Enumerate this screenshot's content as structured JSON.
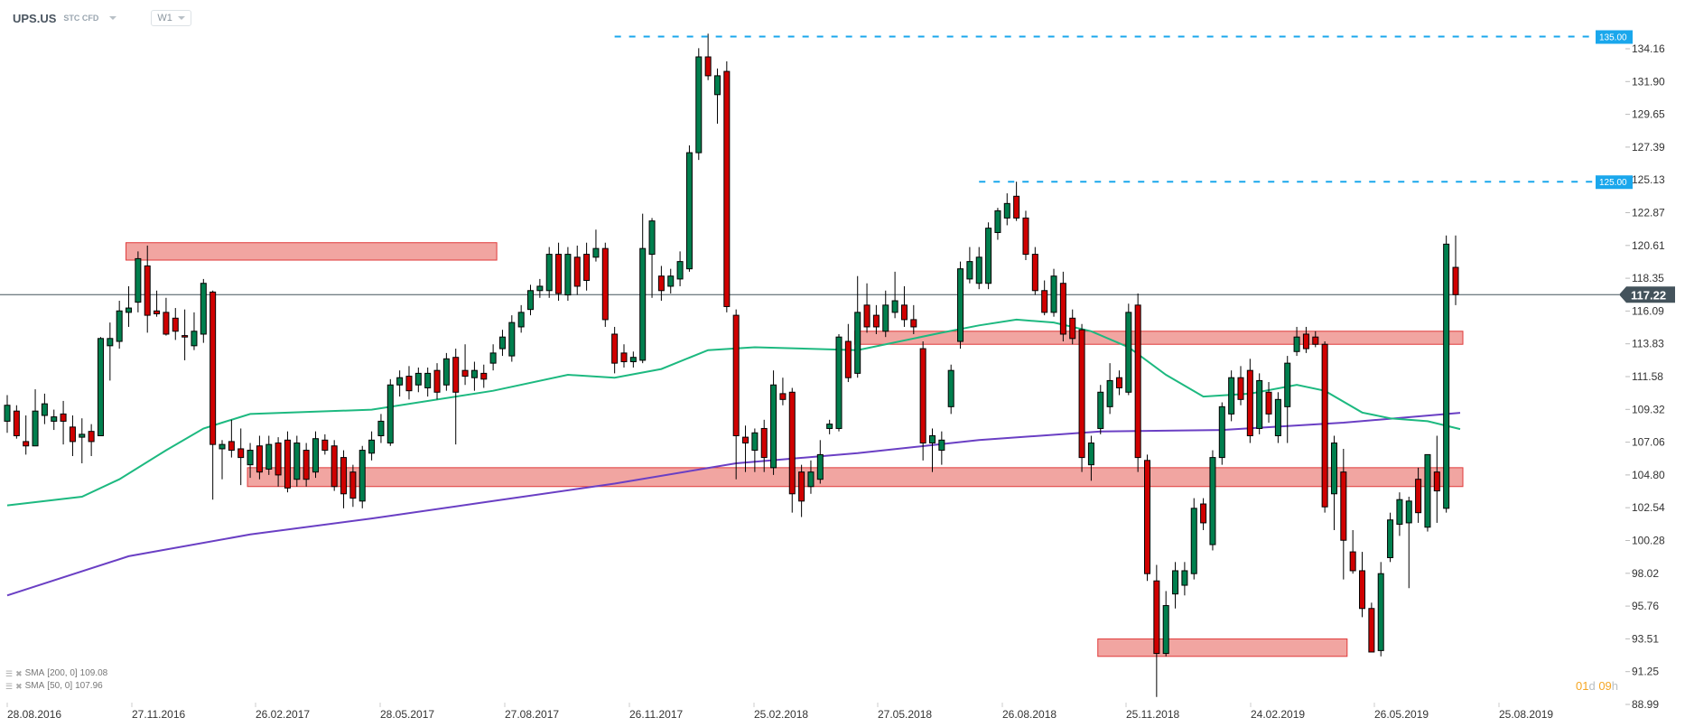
{
  "header": {
    "symbol": "UPS.US",
    "instrument_type": "STC CFD",
    "timeframe": "W1"
  },
  "indicators": [
    {
      "label": "SMA",
      "params": "[200,  0]",
      "value": "109.08",
      "color": "#6a3fc4"
    },
    {
      "label": "SMA",
      "params": "[50,  0]",
      "value": "107.96",
      "color": "#1db980"
    }
  ],
  "countdown": {
    "days": "01",
    "days_unit": "d",
    "hours": "09",
    "hours_unit": "h"
  },
  "colors": {
    "up": "#007f4e",
    "down": "#d00000",
    "zone_fill": "#f0a09c",
    "zone_border": "#e03a3a",
    "level_line": "#1aa7ec",
    "price_line": "#44535c"
  },
  "chart_data": {
    "type": "candlestick",
    "interval": "weekly",
    "first_candle_date": "28.08.2016",
    "ylim": [
      88.99,
      134.16
    ],
    "y_ticks": [
      "134.16",
      "131.90",
      "129.65",
      "127.39",
      "125.13",
      "122.87",
      "120.61",
      "118.35",
      "116.09",
      "113.83",
      "111.58",
      "109.32",
      "107.06",
      "104.80",
      "102.54",
      "100.28",
      "98.02",
      "95.76",
      "93.51",
      "91.25",
      "88.99"
    ],
    "x_ticks": [
      "28.08.2016",
      "27.11.2016",
      "26.02.2017",
      "28.05.2017",
      "27.08.2017",
      "26.11.2017",
      "25.02.2018",
      "27.05.2018",
      "26.08.2018",
      "25.11.2018",
      "24.02.2019",
      "26.05.2019",
      "25.08.2019"
    ],
    "current_price": "117.22",
    "levels": [
      {
        "label": "135.00",
        "value": 135.0,
        "from": "26.11.2017"
      },
      {
        "label": "125.00",
        "value": 125.0,
        "from": "26.08.2018"
      }
    ],
    "zones": [
      {
        "low": 119.6,
        "high": 120.8,
        "from": "27.11.2016",
        "to": "27.08.2017"
      },
      {
        "low": 104.0,
        "high": 105.3,
        "from": "26.02.2017",
        "to": "latest"
      },
      {
        "low": 113.8,
        "high": 114.7,
        "from": "27.05.2018",
        "to": "latest"
      },
      {
        "low": 92.3,
        "high": 93.5,
        "from": "25.11.2018",
        "to": "26.05.2019"
      }
    ],
    "ohlc": [
      [
        108.5,
        110.3,
        107.7,
        109.6
      ],
      [
        109.2,
        109.6,
        107.3,
        107.5
      ],
      [
        107.1,
        108.9,
        106.2,
        106.8
      ],
      [
        106.8,
        110.7,
        106.8,
        109.2
      ],
      [
        108.9,
        110.4,
        108.3,
        109.7
      ],
      [
        108.5,
        109.3,
        107.9,
        108.8
      ],
      [
        109.0,
        109.9,
        106.9,
        108.5
      ],
      [
        108.1,
        108.9,
        106.1,
        107.1
      ],
      [
        107.4,
        108.7,
        105.6,
        107.6
      ],
      [
        107.8,
        108.3,
        106.1,
        107.1
      ],
      [
        107.5,
        114.3,
        107.5,
        114.2
      ],
      [
        113.7,
        115.3,
        111.3,
        114.2
      ],
      [
        114.0,
        116.8,
        113.5,
        116.1
      ],
      [
        116.0,
        117.8,
        115.0,
        116.3
      ],
      [
        116.7,
        120.2,
        116.0,
        119.7
      ],
      [
        119.2,
        120.6,
        114.6,
        115.8
      ],
      [
        116.1,
        117.5,
        115.7,
        115.9
      ],
      [
        116.0,
        117.0,
        114.4,
        114.5
      ],
      [
        115.6,
        116.3,
        114.1,
        114.7
      ],
      [
        114.4,
        116.2,
        112.7,
        114.3
      ],
      [
        113.7,
        116.0,
        113.4,
        114.7
      ],
      [
        114.5,
        118.3,
        113.9,
        118.0
      ],
      [
        117.4,
        117.5,
        103.1,
        106.9
      ],
      [
        106.6,
        107.2,
        104.5,
        106.9
      ],
      [
        107.1,
        108.6,
        106.0,
        106.5
      ],
      [
        106.6,
        108.0,
        104.1,
        106.0
      ],
      [
        105.5,
        107.0,
        104.6,
        106.5
      ],
      [
        106.8,
        107.5,
        104.5,
        105.0
      ],
      [
        105.2,
        107.5,
        104.8,
        106.9
      ],
      [
        107.0,
        107.4,
        104.0,
        104.8
      ],
      [
        107.2,
        107.8,
        103.6,
        103.9
      ],
      [
        104.5,
        107.5,
        104.0,
        107.0
      ],
      [
        106.5,
        107.0,
        104.0,
        104.5
      ],
      [
        105.0,
        107.8,
        104.6,
        107.3
      ],
      [
        107.2,
        107.6,
        106.2,
        106.5
      ],
      [
        106.8,
        107.2,
        103.7,
        104.0
      ],
      [
        106.0,
        106.5,
        102.5,
        103.5
      ],
      [
        105.0,
        105.5,
        102.6,
        103.2
      ],
      [
        103.0,
        106.8,
        102.5,
        106.5
      ],
      [
        106.3,
        107.8,
        105.8,
        107.2
      ],
      [
        107.5,
        109.0,
        107.0,
        108.5
      ],
      [
        107.0,
        111.4,
        106.8,
        111.0
      ],
      [
        111.0,
        112.0,
        110.2,
        111.5
      ],
      [
        111.6,
        112.3,
        110.0,
        110.6
      ],
      [
        111.0,
        112.2,
        110.5,
        111.8
      ],
      [
        110.8,
        112.2,
        110.2,
        111.8
      ],
      [
        112.0,
        112.5,
        110.0,
        110.5
      ],
      [
        111.0,
        113.2,
        110.6,
        112.8
      ],
      [
        112.9,
        113.5,
        106.9,
        110.5
      ],
      [
        112.0,
        113.8,
        111.0,
        111.6
      ],
      [
        111.5,
        112.6,
        110.6,
        112.0
      ],
      [
        111.8,
        112.4,
        110.8,
        111.4
      ],
      [
        112.5,
        113.8,
        112.0,
        113.2
      ],
      [
        113.5,
        114.8,
        113.0,
        114.3
      ],
      [
        113.0,
        115.8,
        112.6,
        115.3
      ],
      [
        115.0,
        116.5,
        114.6,
        116.0
      ],
      [
        116.2,
        117.9,
        115.8,
        117.5
      ],
      [
        117.5,
        118.3,
        117.0,
        117.8
      ],
      [
        117.5,
        120.5,
        117.0,
        120.0
      ],
      [
        120.0,
        120.8,
        116.8,
        117.3
      ],
      [
        117.2,
        120.5,
        116.8,
        120.0
      ],
      [
        119.8,
        120.6,
        117.2,
        117.8
      ],
      [
        120.0,
        120.8,
        117.5,
        118.2
      ],
      [
        119.8,
        121.7,
        119.5,
        120.4
      ],
      [
        120.4,
        120.8,
        115.0,
        115.5
      ],
      [
        114.5,
        115.0,
        111.8,
        112.5
      ],
      [
        113.2,
        113.8,
        112.2,
        112.6
      ],
      [
        112.6,
        113.3,
        112.2,
        112.9
      ],
      [
        112.7,
        122.8,
        112.5,
        120.4
      ],
      [
        120.0,
        122.5,
        117.0,
        122.3
      ],
      [
        118.5,
        119.2,
        116.8,
        117.5
      ],
      [
        117.8,
        119.0,
        117.3,
        118.5
      ],
      [
        118.3,
        120.2,
        117.8,
        119.5
      ],
      [
        119.0,
        127.5,
        118.8,
        127.0
      ],
      [
        127.0,
        134.2,
        126.5,
        133.6
      ],
      [
        133.6,
        135.2,
        132.0,
        132.3
      ],
      [
        131.0,
        132.8,
        129.0,
        132.3
      ],
      [
        132.6,
        133.3,
        116.0,
        116.4
      ],
      [
        115.8,
        116.2,
        104.5,
        107.5
      ],
      [
        107.4,
        108.2,
        105.0,
        107.0
      ],
      [
        106.5,
        108.0,
        105.0,
        107.7
      ],
      [
        108.0,
        108.6,
        105.0,
        106.0
      ],
      [
        105.3,
        112.0,
        104.8,
        111.0
      ],
      [
        110.4,
        111.5,
        109.6,
        110.0
      ],
      [
        110.5,
        110.8,
        102.2,
        103.5
      ],
      [
        105.0,
        105.5,
        101.9,
        103.0
      ],
      [
        104.0,
        105.8,
        103.5,
        105.0
      ],
      [
        104.5,
        107.2,
        104.2,
        106.2
      ],
      [
        108.0,
        108.6,
        107.6,
        108.3
      ],
      [
        108.0,
        114.5,
        107.8,
        114.3
      ],
      [
        114.0,
        115.2,
        111.2,
        111.5
      ],
      [
        111.8,
        118.5,
        111.5,
        116.0
      ],
      [
        116.5,
        118.0,
        114.6,
        115.0
      ],
      [
        115.8,
        116.5,
        114.5,
        115.0
      ],
      [
        114.7,
        117.5,
        114.3,
        116.5
      ],
      [
        116.0,
        118.8,
        115.6,
        116.8
      ],
      [
        116.5,
        117.8,
        115.0,
        115.5
      ],
      [
        115.5,
        116.5,
        114.5,
        115.0
      ],
      [
        113.5,
        114.0,
        105.8,
        107.0
      ],
      [
        107.0,
        108.0,
        105.0,
        107.5
      ],
      [
        106.5,
        107.8,
        105.5,
        107.2
      ],
      [
        109.5,
        112.4,
        109.0,
        112.0
      ],
      [
        114.0,
        119.5,
        113.5,
        119.0
      ],
      [
        118.3,
        120.5,
        118.0,
        119.5
      ],
      [
        118.0,
        120.5,
        117.6,
        119.8
      ],
      [
        118.0,
        122.2,
        117.6,
        121.8
      ],
      [
        121.5,
        123.2,
        121.0,
        123.0
      ],
      [
        122.5,
        124.2,
        122.0,
        123.5
      ],
      [
        124.0,
        125.0,
        122.3,
        122.5
      ],
      [
        122.5,
        123.0,
        119.6,
        120.0
      ],
      [
        120.0,
        120.5,
        117.2,
        117.5
      ],
      [
        117.5,
        118.2,
        115.8,
        116.0
      ],
      [
        116.0,
        119.0,
        115.7,
        118.5
      ],
      [
        118.0,
        118.8,
        114.0,
        114.5
      ],
      [
        115.6,
        116.2,
        113.8,
        114.2
      ],
      [
        114.8,
        115.2,
        105.0,
        106.0
      ],
      [
        105.5,
        107.5,
        104.4,
        107.0
      ],
      [
        108.0,
        111.0,
        107.6,
        110.5
      ],
      [
        109.5,
        112.5,
        109.0,
        111.3
      ],
      [
        111.5,
        112.0,
        110.3,
        110.8
      ],
      [
        110.5,
        116.6,
        110.3,
        116.0
      ],
      [
        116.5,
        117.3,
        105.0,
        106.0
      ],
      [
        105.8,
        106.2,
        97.5,
        98.0
      ],
      [
        97.5,
        98.6,
        89.5,
        92.5
      ],
      [
        92.5,
        96.8,
        92.3,
        95.8
      ],
      [
        96.6,
        98.8,
        95.6,
        98.2
      ],
      [
        97.2,
        98.8,
        96.5,
        98.2
      ],
      [
        98.0,
        103.2,
        97.6,
        102.5
      ],
      [
        102.8,
        103.2,
        101.0,
        101.5
      ],
      [
        100.0,
        106.5,
        99.6,
        106.0
      ],
      [
        106.0,
        109.8,
        105.5,
        109.5
      ],
      [
        109.0,
        112.0,
        108.5,
        111.5
      ],
      [
        111.5,
        112.3,
        109.6,
        110.0
      ],
      [
        112.0,
        112.8,
        107.0,
        107.5
      ],
      [
        108.0,
        111.8,
        107.6,
        111.3
      ],
      [
        110.5,
        111.2,
        108.4,
        109.0
      ],
      [
        107.5,
        110.5,
        107.0,
        110.0
      ],
      [
        109.5,
        113.0,
        107.0,
        112.5
      ],
      [
        113.3,
        115.0,
        113.0,
        114.3
      ],
      [
        114.5,
        115.0,
        113.2,
        113.5
      ],
      [
        114.3,
        114.7,
        113.6,
        113.8
      ],
      [
        113.8,
        114.0,
        102.2,
        102.6
      ],
      [
        103.5,
        107.5,
        101.0,
        107.0
      ],
      [
        105.0,
        106.6,
        97.6,
        100.3
      ],
      [
        99.5,
        101.0,
        98.0,
        98.2
      ],
      [
        98.2,
        99.5,
        95.0,
        95.6
      ],
      [
        95.6,
        96.0,
        92.6,
        92.6
      ],
      [
        92.7,
        98.8,
        92.3,
        98.0
      ],
      [
        99.1,
        102.2,
        98.8,
        101.7
      ],
      [
        101.4,
        103.6,
        100.6,
        103.1
      ],
      [
        101.5,
        103.3,
        97.0,
        103.0
      ],
      [
        104.5,
        105.3,
        101.5,
        102.2
      ],
      [
        101.2,
        106.2,
        100.9,
        106.2
      ],
      [
        105.0,
        107.5,
        101.5,
        103.7
      ],
      [
        102.5,
        121.3,
        102.2,
        120.7
      ],
      [
        119.1,
        121.3,
        116.5,
        117.22
      ]
    ],
    "sma200": [
      [
        "28.08.2016",
        96.5
      ],
      [
        "27.11.2016",
        99.2
      ],
      [
        "26.02.2017",
        100.7
      ],
      [
        "28.05.2017",
        101.8
      ],
      [
        "27.08.2017",
        103.0
      ],
      [
        "26.11.2017",
        104.2
      ],
      [
        "25.02.2018",
        105.6
      ],
      [
        "27.05.2018",
        106.3
      ],
      [
        "26.08.2018",
        107.2
      ],
      [
        "25.11.2018",
        107.8
      ],
      [
        "24.02.2019",
        107.9
      ],
      [
        "26.05.2019",
        108.4
      ],
      [
        "latest",
        109.08
      ]
    ],
    "sma50": [
      [
        "28.08.2016",
        102.7
      ],
      [
        "23.10.2016",
        103.3
      ],
      [
        "20.11.2016",
        104.5
      ],
      [
        "25.12.2016",
        106.5
      ],
      [
        "22.01.2017",
        108.0
      ],
      [
        "05.02.2017",
        108.4
      ],
      [
        "26.02.2017",
        109.0
      ],
      [
        "28.05.2017",
        109.3
      ],
      [
        "27.08.2017",
        110.6
      ],
      [
        "22.10.2017",
        111.7
      ],
      [
        "26.11.2017",
        111.5
      ],
      [
        "31.12.2017",
        112.1
      ],
      [
        "04.02.2018",
        113.4
      ],
      [
        "11.03.2018",
        113.6
      ],
      [
        "27.05.2018",
        113.4
      ],
      [
        "29.07.2018",
        114.6
      ],
      [
        "26.08.2018",
        115.1
      ],
      [
        "23.09.2018",
        115.5
      ],
      [
        "21.10.2018",
        115.3
      ],
      [
        "18.11.2018",
        114.7
      ],
      [
        "16.12.2018",
        113.6
      ],
      [
        "13.01.2019",
        111.7
      ],
      [
        "10.02.2019",
        110.2
      ],
      [
        "17.03.2019",
        110.4
      ],
      [
        "21.04.2019",
        111.0
      ],
      [
        "12.05.2019",
        110.6
      ],
      [
        "09.06.2019",
        109.1
      ],
      [
        "30.06.2019",
        108.7
      ],
      [
        "28.07.2019",
        108.5
      ],
      [
        "latest",
        107.96
      ]
    ]
  }
}
